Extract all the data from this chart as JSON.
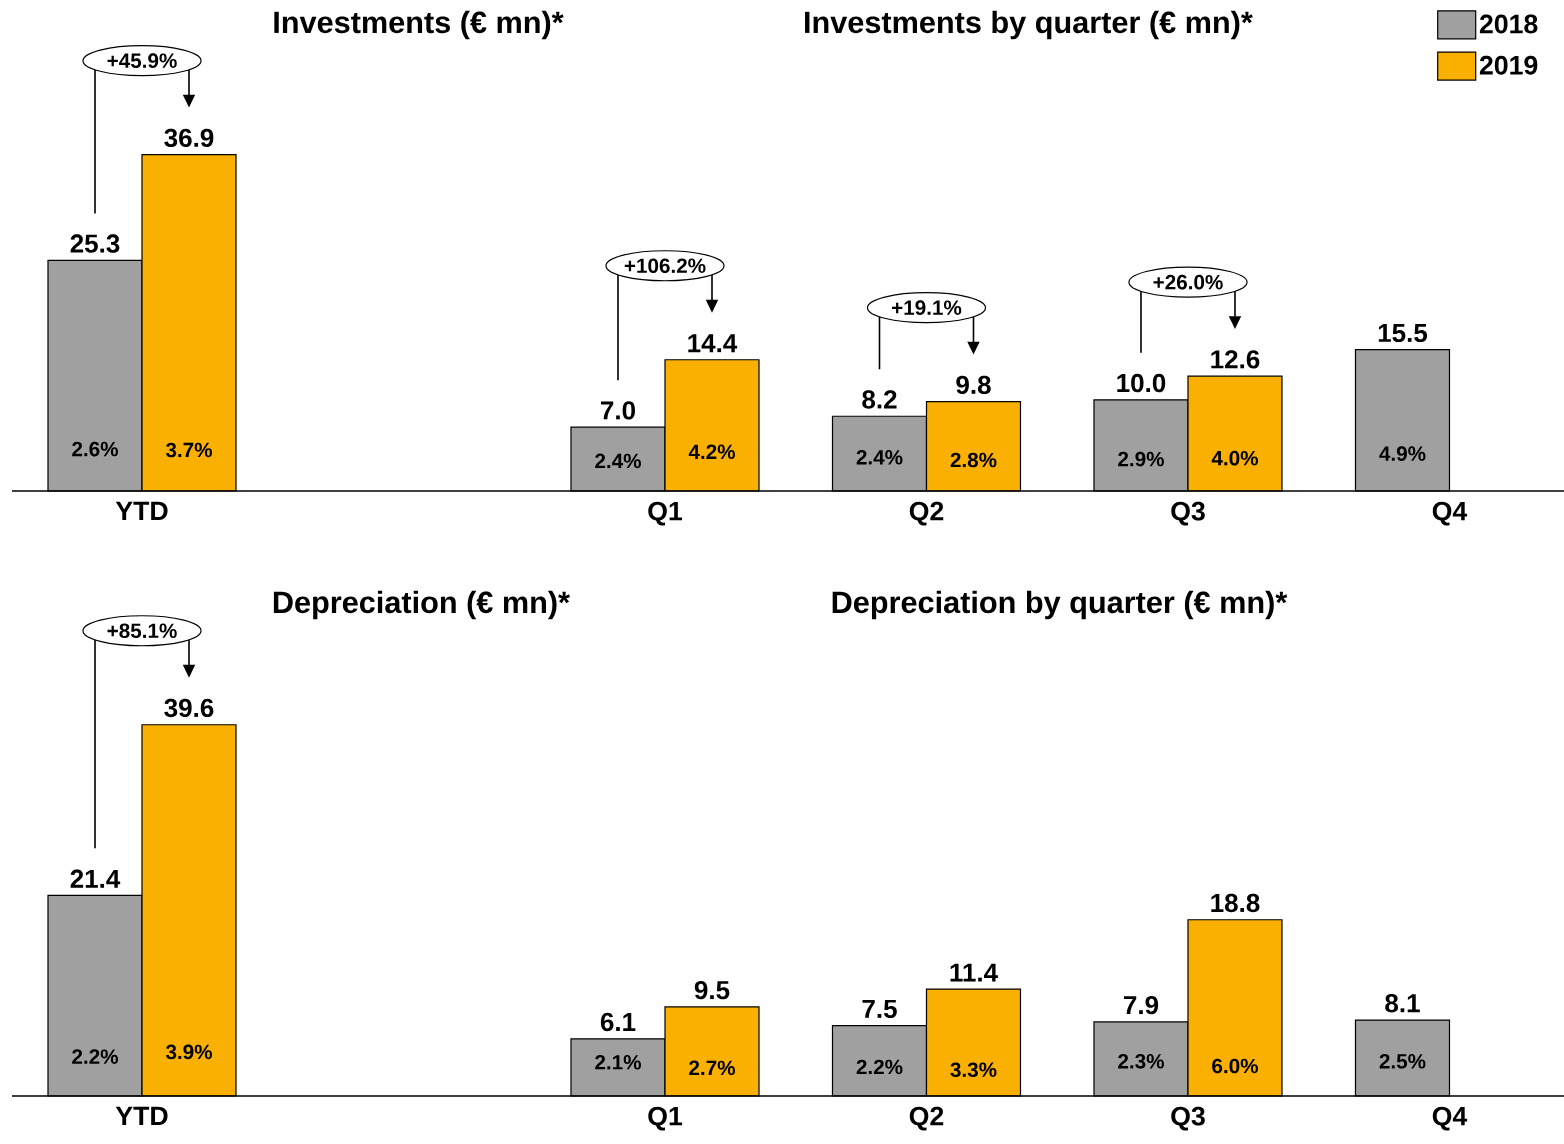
{
  "chart_data": [
    {
      "type": "bar",
      "title": "Investments (€ mn)*",
      "subtitle": "Investments by quarter (€ mn)*",
      "categories": [
        "YTD",
        null,
        "Q1",
        "Q2",
        "Q3",
        "Q4"
      ],
      "legend": "top right",
      "series": [
        {
          "name": "2018",
          "color": "#a0a0a0",
          "values": [
            25.3,
            null,
            7.0,
            8.2,
            10.0,
            15.5
          ],
          "value_labels": [
            "25.3",
            null,
            "7.0",
            "8.2",
            "10.0",
            "15.5"
          ]
        },
        {
          "name": "2019",
          "color": "#f9b000",
          "values": [
            36.9,
            null,
            14.4,
            9.8,
            12.6,
            null
          ],
          "value_labels": [
            "36.9",
            null,
            "14.4",
            "9.8",
            "12.6",
            null
          ]
        }
      ],
      "annotations": [
        "+45.9%",
        "+106.2%",
        "+19.1%",
        "+26.0%",
        {
          "text": "2.6%",
          "x": "YTD",
          "y": 4.6
        },
        {
          "text": "3.7%",
          "x": "YTD",
          "y": 4.5
        },
        {
          "text": "2.4%",
          "x": "Q1",
          "y": 3.3
        },
        {
          "text": "4.2%",
          "x": "Q1",
          "y": 4.3
        },
        {
          "text": "2.4%",
          "x": "Q2",
          "y": 3.7
        },
        {
          "text": "2.8%",
          "x": "Q2",
          "y": 3.4
        },
        {
          "text": "2.9%",
          "x": "Q3",
          "y": 3.5
        },
        {
          "text": "4.0%",
          "x": "Q3",
          "y": 3.6
        },
        {
          "text": "4.9%",
          "x": "Q4",
          "y": 4.1
        }
      ]
    },
    {
      "type": "bar",
      "title": "Depreciation (€ mn)*",
      "subtitle": "Depreciation by quarter (€ mn)*",
      "categories": [
        "YTD",
        null,
        "Q1",
        "Q2",
        "Q3",
        "Q4"
      ],
      "series": [
        {
          "color": "#a0a0a0",
          "values": [
            21.4,
            null,
            6.1,
            7.5,
            7.9,
            8.1
          ],
          "value_labels": [
            "21.4",
            null,
            "6.1",
            "7.5",
            "7.9",
            "8.1"
          ]
        },
        {
          "color": "#f9b000",
          "values": [
            39.6,
            null,
            9.5,
            11.4,
            18.8,
            null
          ],
          "value_labels": [
            "39.6",
            null,
            "9.5",
            "11.4",
            "18.8",
            null
          ]
        }
      ],
      "annotations": [
        "+85.1%",
        {
          "text": "2.2%",
          "x": "YTD",
          "y": 4.2
        },
        {
          "text": "3.9%",
          "x": "YTD",
          "y": 4.7
        },
        {
          "text": "2.1%",
          "x": "Q1",
          "y": 3.6
        },
        {
          "text": "2.7%",
          "x": "Q1",
          "y": 3.0
        },
        {
          "text": "2.2%",
          "x": "Q2",
          "y": 3.1
        },
        {
          "text": "3.3%",
          "x": "Q2",
          "y": 2.8
        },
        {
          "text": "2.3%",
          "x": "Q3",
          "y": 3.7
        },
        {
          "text": "6.0%",
          "x": "Q3",
          "y": 3.2
        },
        {
          "text": "2.5%",
          "x": "Q4",
          "y": 3.7
        }
      ]
    }
  ]
}
